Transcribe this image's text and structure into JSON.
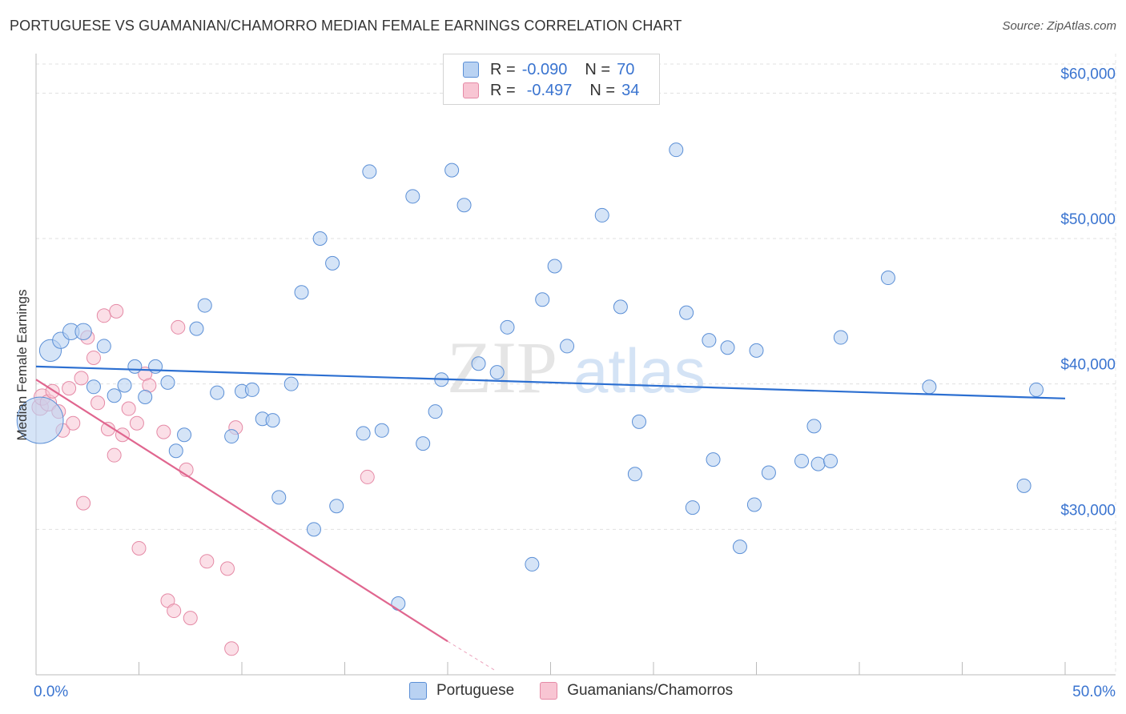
{
  "title": "PORTUGUESE VS GUAMANIAN/CHAMORRO MEDIAN FEMALE EARNINGS CORRELATION CHART",
  "source": "Source: ZipAtlas.com",
  "watermark": {
    "zip": "ZIP",
    "atlas": "atlas"
  },
  "legend": {
    "rows": [
      {
        "r_label": "R =",
        "r_value": "-0.090",
        "n_label": "N =",
        "n_value": "70"
      },
      {
        "r_label": "R =",
        "r_value": "-0.497",
        "n_label": "N =",
        "n_value": "34"
      }
    ]
  },
  "bottom_legend": {
    "series1": "Portuguese",
    "series2": "Guamanians/Chamorros"
  },
  "colors": {
    "blue_fill": "#b9d2f2",
    "blue_stroke": "#5b8fd6",
    "blue_line": "#2c6fd1",
    "pink_fill": "#f8c5d3",
    "pink_stroke": "#e58aa6",
    "pink_line": "#e0668f",
    "grid": "#e0e0e0",
    "axis_text": "#3a74d0"
  },
  "chart_data": {
    "type": "scatter",
    "title": "PORTUGUESE VS GUAMANIAN/CHAMORRO MEDIAN FEMALE EARNINGS CORRELATION CHART",
    "xlabel": "",
    "ylabel": "Median Female Earnings",
    "xlim": [
      0,
      50
    ],
    "ylim": [
      20000,
      62000
    ],
    "x_tick_labels": [
      "0.0%",
      "50.0%"
    ],
    "y_ticks": [
      30000,
      40000,
      50000,
      60000
    ],
    "y_tick_labels": [
      "$30,000",
      "$40,000",
      "$50,000",
      "$60,000"
    ],
    "grid": true,
    "series": [
      {
        "name": "Portuguese",
        "r": -0.09,
        "n": 70,
        "trend": {
          "x0": 0,
          "y0": 41200,
          "x1": 50,
          "y1": 39000
        },
        "points": [
          [
            0.2,
            37500,
            3.4
          ],
          [
            0.7,
            42300,
            1.6
          ],
          [
            1.2,
            43000,
            1.2
          ],
          [
            1.7,
            43600,
            1.2
          ],
          [
            2.3,
            43600,
            1.2
          ],
          [
            2.8,
            39800,
            1.0
          ],
          [
            3.3,
            42600,
            1.0
          ],
          [
            3.8,
            39200,
            1.0
          ],
          [
            4.3,
            39900,
            1.0
          ],
          [
            4.8,
            41200,
            1.0
          ],
          [
            5.3,
            39100,
            1.0
          ],
          [
            5.8,
            41200,
            1.0
          ],
          [
            6.4,
            40100,
            1.0
          ],
          [
            6.8,
            35400,
            1.0
          ],
          [
            7.2,
            36500,
            1.0
          ],
          [
            7.8,
            43800,
            1.0
          ],
          [
            8.2,
            45400,
            1.0
          ],
          [
            8.8,
            39400,
            1.0
          ],
          [
            9.5,
            36400,
            1.0
          ],
          [
            10.0,
            39500,
            1.0
          ],
          [
            10.5,
            39600,
            1.0
          ],
          [
            11.0,
            37600,
            1.0
          ],
          [
            11.5,
            37500,
            1.0
          ],
          [
            11.8,
            32200,
            1.0
          ],
          [
            12.4,
            40000,
            1.0
          ],
          [
            12.9,
            46300,
            1.0
          ],
          [
            13.5,
            30000,
            1.0
          ],
          [
            13.8,
            50000,
            1.0
          ],
          [
            14.4,
            48300,
            1.0
          ],
          [
            14.6,
            31600,
            1.0
          ],
          [
            15.9,
            36600,
            1.0
          ],
          [
            16.2,
            54600,
            1.0
          ],
          [
            16.8,
            36800,
            1.0
          ],
          [
            17.6,
            24900,
            1.0
          ],
          [
            18.3,
            52900,
            1.0
          ],
          [
            18.8,
            35900,
            1.0
          ],
          [
            19.4,
            38100,
            1.0
          ],
          [
            19.7,
            40300,
            1.0
          ],
          [
            20.2,
            54700,
            1.0
          ],
          [
            20.8,
            52300,
            1.0
          ],
          [
            21.5,
            41400,
            1.0
          ],
          [
            22.4,
            40800,
            1.0
          ],
          [
            22.9,
            43900,
            1.0
          ],
          [
            24.1,
            27600,
            1.0
          ],
          [
            24.6,
            45800,
            1.0
          ],
          [
            25.2,
            48100,
            1.0
          ],
          [
            25.8,
            42600,
            1.0
          ],
          [
            27.5,
            51600,
            1.0
          ],
          [
            28.4,
            45300,
            1.0
          ],
          [
            29.1,
            33800,
            1.0
          ],
          [
            29.3,
            37400,
            1.0
          ],
          [
            31.1,
            56100,
            1.0
          ],
          [
            31.6,
            44900,
            1.0
          ],
          [
            31.9,
            31500,
            1.0
          ],
          [
            32.7,
            43000,
            1.0
          ],
          [
            32.9,
            34800,
            1.0
          ],
          [
            33.6,
            42500,
            1.0
          ],
          [
            34.2,
            28800,
            1.0
          ],
          [
            34.9,
            31700,
            1.0
          ],
          [
            35.0,
            42300,
            1.0
          ],
          [
            35.6,
            33900,
            1.0
          ],
          [
            37.2,
            34700,
            1.0
          ],
          [
            37.8,
            37100,
            1.0
          ],
          [
            38.0,
            34500,
            1.0
          ],
          [
            38.6,
            34700,
            1.0
          ],
          [
            39.1,
            43200,
            1.0
          ],
          [
            41.4,
            47300,
            1.0
          ],
          [
            43.4,
            39800,
            1.0
          ],
          [
            48.0,
            33000,
            1.0
          ],
          [
            48.6,
            39600,
            1.0
          ]
        ]
      },
      {
        "name": "Guamanians/Chamorros",
        "r": -0.497,
        "n": 34,
        "trend": {
          "x0": 0,
          "y0": 40300,
          "x1": 20.0,
          "y1": 22300,
          "dash_to_x": 22.3,
          "dash_to_y": 20300
        },
        "points": [
          [
            0.2,
            38400,
            1.2
          ],
          [
            0.3,
            39100,
            1.2
          ],
          [
            0.6,
            38700,
            1.2
          ],
          [
            0.8,
            39500,
            1.0
          ],
          [
            1.1,
            38100,
            1.0
          ],
          [
            1.3,
            36800,
            1.0
          ],
          [
            1.6,
            39700,
            1.0
          ],
          [
            1.8,
            37300,
            1.0
          ],
          [
            2.2,
            40400,
            1.0
          ],
          [
            2.3,
            31800,
            1.0
          ],
          [
            2.5,
            43200,
            1.0
          ],
          [
            2.8,
            41800,
            1.0
          ],
          [
            3.0,
            38700,
            1.0
          ],
          [
            3.3,
            44700,
            1.0
          ],
          [
            3.5,
            36900,
            1.0
          ],
          [
            3.8,
            35100,
            1.0
          ],
          [
            3.9,
            45000,
            1.0
          ],
          [
            4.2,
            36500,
            1.0
          ],
          [
            4.5,
            38300,
            1.0
          ],
          [
            4.9,
            37300,
            1.0
          ],
          [
            5.0,
            28700,
            1.0
          ],
          [
            5.3,
            40700,
            1.0
          ],
          [
            5.5,
            39900,
            1.0
          ],
          [
            6.2,
            36700,
            1.0
          ],
          [
            6.4,
            25100,
            1.0
          ],
          [
            6.7,
            24400,
            1.0
          ],
          [
            6.9,
            43900,
            1.0
          ],
          [
            7.3,
            34100,
            1.0
          ],
          [
            7.5,
            23900,
            1.0
          ],
          [
            8.3,
            27800,
            1.0
          ],
          [
            9.3,
            27300,
            1.0
          ],
          [
            9.5,
            21800,
            1.0
          ],
          [
            9.7,
            37000,
            1.0
          ],
          [
            16.1,
            33600,
            1.0
          ]
        ]
      }
    ]
  }
}
